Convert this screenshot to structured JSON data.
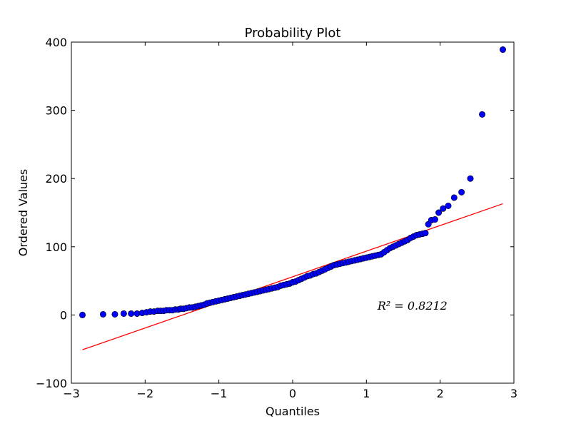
{
  "chart_data": {
    "type": "scatter",
    "title": "Probability Plot",
    "xlabel": "Quantiles",
    "ylabel": "Ordered Values",
    "xlim": [
      -3,
      3
    ],
    "ylim": [
      -100,
      400
    ],
    "xticks": [
      -3,
      -2,
      -1,
      0,
      1,
      2,
      3
    ],
    "yticks": [
      -100,
      0,
      100,
      200,
      300,
      400
    ],
    "xtick_labels": [
      "−3",
      "−2",
      "−1",
      "0",
      "1",
      "2",
      "3"
    ],
    "ytick_labels": [
      "−100",
      "0",
      "100",
      "200",
      "300",
      "400"
    ],
    "grid": false,
    "annotation": {
      "text": "R² = 0.8212",
      "x": 1.15,
      "y": 8
    },
    "fit_line": {
      "color": "#ff0000",
      "x": [
        -2.85,
        2.85
      ],
      "y": [
        -51,
        163
      ]
    },
    "marker_color": "#0000ff",
    "series": [
      {
        "points": [
          [
            -2.85,
            0
          ],
          [
            -2.57,
            1
          ],
          [
            -2.41,
            1
          ],
          [
            -2.29,
            2
          ],
          [
            -2.19,
            2
          ],
          [
            -2.11,
            2
          ],
          [
            -2.04,
            3
          ],
          [
            -1.98,
            4
          ],
          [
            -1.93,
            5
          ],
          [
            -1.88,
            5
          ],
          [
            -1.83,
            6
          ],
          [
            -1.79,
            6
          ],
          [
            -1.75,
            6
          ],
          [
            -1.71,
            7
          ],
          [
            -1.67,
            7
          ],
          [
            -1.63,
            7
          ],
          [
            -1.59,
            8
          ],
          [
            -1.55,
            8
          ],
          [
            -1.52,
            9
          ],
          [
            -1.48,
            9
          ],
          [
            -1.44,
            10
          ],
          [
            -1.4,
            11
          ],
          [
            -1.36,
            11
          ],
          [
            -1.32,
            12
          ],
          [
            -1.28,
            13
          ],
          [
            -1.24,
            14
          ],
          [
            -1.2,
            15
          ],
          [
            -1.16,
            17
          ],
          [
            -1.12,
            18
          ],
          [
            -1.08,
            19
          ],
          [
            -1.04,
            20
          ],
          [
            -1.0,
            21
          ],
          [
            -0.96,
            22
          ],
          [
            -0.92,
            23
          ],
          [
            -0.88,
            24
          ],
          [
            -0.84,
            25
          ],
          [
            -0.8,
            26
          ],
          [
            -0.76,
            27
          ],
          [
            -0.72,
            28
          ],
          [
            -0.68,
            29
          ],
          [
            -0.64,
            30
          ],
          [
            -0.6,
            31
          ],
          [
            -0.56,
            32
          ],
          [
            -0.52,
            33
          ],
          [
            -0.48,
            34
          ],
          [
            -0.44,
            35
          ],
          [
            -0.4,
            36
          ],
          [
            -0.36,
            37
          ],
          [
            -0.32,
            38
          ],
          [
            -0.28,
            39
          ],
          [
            -0.24,
            40
          ],
          [
            -0.2,
            41
          ],
          [
            -0.16,
            43
          ],
          [
            -0.12,
            44
          ],
          [
            -0.08,
            45
          ],
          [
            -0.04,
            46
          ],
          [
            0.0,
            48
          ],
          [
            0.04,
            49
          ],
          [
            0.08,
            51
          ],
          [
            0.12,
            53
          ],
          [
            0.16,
            55
          ],
          [
            0.2,
            57
          ],
          [
            0.24,
            58
          ],
          [
            0.28,
            60
          ],
          [
            0.32,
            61
          ],
          [
            0.36,
            63
          ],
          [
            0.4,
            65
          ],
          [
            0.44,
            67
          ],
          [
            0.48,
            69
          ],
          [
            0.52,
            71
          ],
          [
            0.56,
            73
          ],
          [
            0.6,
            74
          ],
          [
            0.64,
            75
          ],
          [
            0.68,
            76
          ],
          [
            0.72,
            77
          ],
          [
            0.76,
            78
          ],
          [
            0.8,
            79
          ],
          [
            0.84,
            80
          ],
          [
            0.88,
            81
          ],
          [
            0.92,
            82
          ],
          [
            0.96,
            83
          ],
          [
            1.0,
            84
          ],
          [
            1.04,
            85
          ],
          [
            1.08,
            86
          ],
          [
            1.12,
            87
          ],
          [
            1.16,
            88
          ],
          [
            1.2,
            89
          ],
          [
            1.24,
            92
          ],
          [
            1.28,
            95
          ],
          [
            1.32,
            98
          ],
          [
            1.36,
            100
          ],
          [
            1.4,
            102
          ],
          [
            1.44,
            104
          ],
          [
            1.48,
            106
          ],
          [
            1.52,
            108
          ],
          [
            1.56,
            110
          ],
          [
            1.6,
            113
          ],
          [
            1.64,
            115
          ],
          [
            1.68,
            117
          ],
          [
            1.72,
            118
          ],
          [
            1.76,
            119
          ],
          [
            1.8,
            120
          ],
          [
            1.84,
            133
          ],
          [
            1.88,
            139
          ],
          [
            1.93,
            140
          ],
          [
            1.98,
            150
          ],
          [
            2.04,
            156
          ],
          [
            2.11,
            160
          ],
          [
            2.19,
            172
          ],
          [
            2.29,
            180
          ],
          [
            2.41,
            200
          ],
          [
            2.57,
            294
          ],
          [
            2.85,
            389
          ]
        ]
      }
    ]
  }
}
